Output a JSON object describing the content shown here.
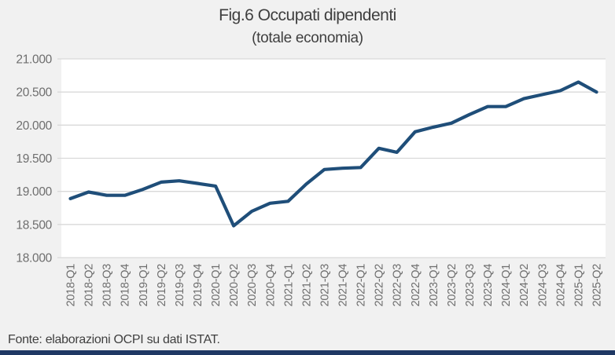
{
  "title": "Fig.6 Occupati dipendenti",
  "subtitle": "(totale economia)",
  "footer": {
    "source_label": "Fonte: elaborazioni OCPI su dati ISTAT."
  },
  "colors": {
    "page_bg": "#f1f1f1",
    "plot_bg": "#ffffff",
    "grid": "#d9d9d9",
    "axis_text": "#6e6e6e",
    "title_text": "#3f3f3f",
    "line": "#1f4e79",
    "bottom_bar": "#1f3864"
  },
  "chart_data": {
    "type": "line",
    "title": "Fig.6 Occupati dipendenti",
    "subtitle": "(totale economia)",
    "series_name": "Occupati dipendenti (totale economia)",
    "categories": [
      "2018-Q1",
      "2018-Q2",
      "2018-Q3",
      "2018-Q4",
      "2019-Q1",
      "2019-Q2",
      "2019-Q3",
      "2019-Q4",
      "2020-Q1",
      "2020-Q2",
      "2020-Q3",
      "2020-Q4",
      "2021-Q1",
      "2021-Q2",
      "2021-Q3",
      "2021-Q4",
      "2022-Q1",
      "2022-Q2",
      "2022-Q3",
      "2022-Q4",
      "2023-Q1",
      "2023-Q2",
      "2023-Q3",
      "2023-Q4",
      "2024-Q1",
      "2024-Q2",
      "2024-Q3",
      "2024-Q4",
      "2025-Q1",
      "2025-Q2"
    ],
    "values": [
      18890,
      18990,
      18940,
      18940,
      19030,
      19140,
      19160,
      19120,
      19080,
      18480,
      18700,
      18820,
      18850,
      19110,
      19330,
      19350,
      19360,
      19650,
      19590,
      19900,
      19970,
      20030,
      20160,
      20280,
      20280,
      20400,
      20460,
      20520,
      20650,
      20500
    ],
    "xlabel": "",
    "ylabel": "",
    "ylim": [
      18000,
      21000
    ],
    "ytick_step": 500,
    "ytick_labels": [
      "18.000",
      "18.500",
      "19.000",
      "19.500",
      "20.000",
      "20.500",
      "21.000"
    ],
    "grid": true,
    "legend_position": "none"
  }
}
